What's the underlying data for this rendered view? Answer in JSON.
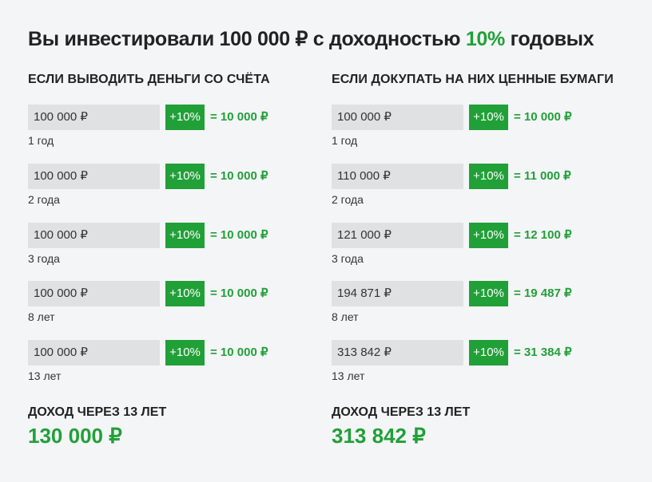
{
  "title": {
    "prefix": "Вы инвестировали 100 000 ₽ с доходностью ",
    "rate": "10%",
    "suffix": " годовых"
  },
  "columns": [
    {
      "heading": "ЕСЛИ ВЫВОДИТЬ ДЕНЬГИ СО СЧЁТА",
      "rows": [
        {
          "amount": "100 000 ₽",
          "rate": "+10%",
          "gain": "= 10 000 ₽",
          "period": "1 год"
        },
        {
          "amount": "100 000 ₽",
          "rate": "+10%",
          "gain": "= 10 000 ₽",
          "period": "2 года"
        },
        {
          "amount": "100 000 ₽",
          "rate": "+10%",
          "gain": "= 10 000 ₽",
          "period": "3 года"
        },
        {
          "amount": "100 000 ₽",
          "rate": "+10%",
          "gain": "= 10 000 ₽",
          "period": "8 лет"
        },
        {
          "amount": "100 000 ₽",
          "rate": "+10%",
          "gain": "= 10 000 ₽",
          "period": "13 лет"
        }
      ],
      "income_label": "ДОХОД ЧЕРЕЗ 13 ЛЕТ",
      "income_value": "130 000 ₽"
    },
    {
      "heading": "ЕСЛИ ДОКУПАТЬ НА НИХ ЦЕННЫЕ БУМАГИ",
      "rows": [
        {
          "amount": "100 000 ₽",
          "rate": "+10%",
          "gain": "= 10 000 ₽",
          "period": "1 год"
        },
        {
          "amount": "110 000 ₽",
          "rate": "+10%",
          "gain": "= 11 000 ₽",
          "period": "2 года"
        },
        {
          "amount": "121 000 ₽",
          "rate": "+10%",
          "gain": "= 12 100 ₽",
          "period": "3 года"
        },
        {
          "amount": "194 871 ₽",
          "rate": "+10%",
          "gain": "= 19 487 ₽",
          "period": "8 лет"
        },
        {
          "amount": "313 842 ₽",
          "rate": "+10%",
          "gain": "= 31 384 ₽",
          "period": "13 лет"
        }
      ],
      "income_label": "ДОХОД ЧЕРЕЗ 13 ЛЕТ",
      "income_value": "313 842 ₽"
    }
  ],
  "colors": {
    "accent": "#21a038",
    "amount_box": "#e0e1e3",
    "background": "#f4f5f7",
    "text": "#222222"
  }
}
